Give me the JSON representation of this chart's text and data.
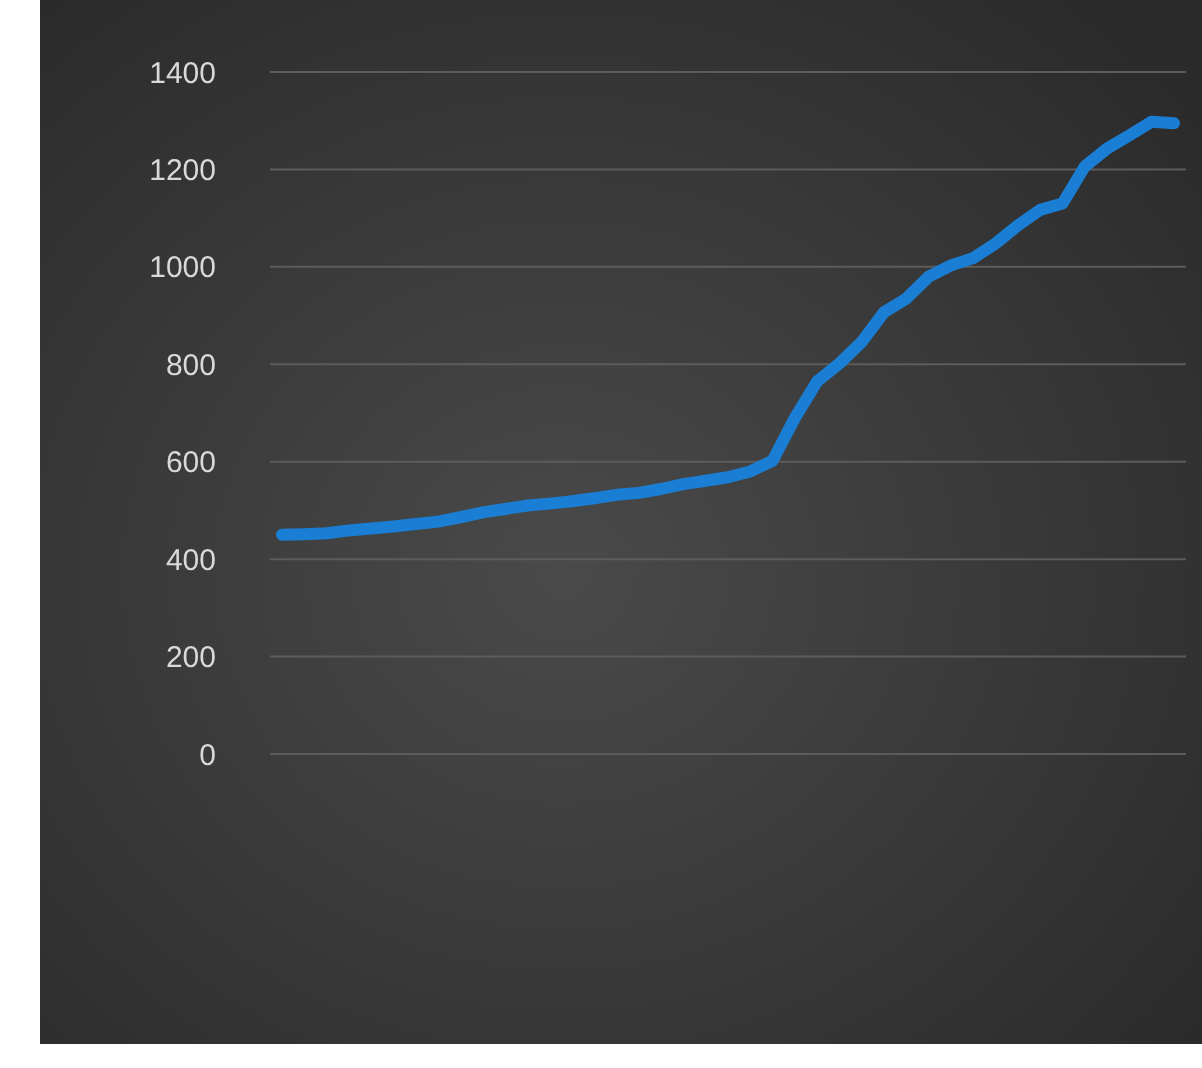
{
  "chart_data": {
    "type": "line",
    "categories": [
      null,
      null,
      null,
      null,
      null,
      null,
      null,
      null,
      null,
      null,
      null,
      null,
      null,
      null,
      null,
      null,
      null,
      null,
      null,
      null,
      null,
      null,
      null,
      null,
      null,
      null,
      null,
      null,
      null,
      null,
      null,
      null,
      null,
      null,
      null,
      null,
      null,
      null,
      null,
      null,
      null
    ],
    "series": [
      {
        "color": "#1a7fd4",
        "values": [
          450,
          451,
          453,
          459,
          463,
          467,
          472,
          477,
          486,
          496,
          503,
          510,
          514,
          519,
          525,
          532,
          536,
          544,
          554,
          561,
          568,
          580,
          602,
          690,
          765,
          802,
          846,
          907,
          935,
          980,
          1003,
          1018,
          1048,
          1085,
          1117,
          1130,
          1206,
          1243,
          1270,
          1298,
          1295
        ]
      }
    ],
    "ylim": [
      0,
      1400
    ],
    "yticks": [
      0,
      200,
      400,
      600,
      800,
      1000,
      1200,
      1400
    ],
    "grid": "y"
  }
}
